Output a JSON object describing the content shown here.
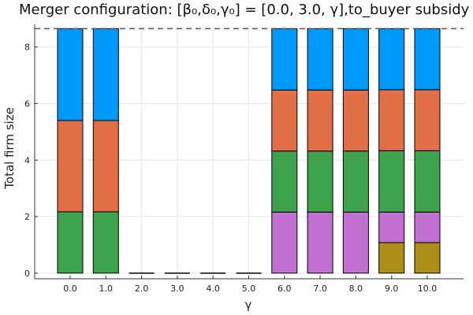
{
  "chart_data": {
    "type": "bar",
    "stacked": true,
    "title": "Merger configuration: [β₀,δ₀,γ₀] = [0.0, 3.0, γ],to_buyer subsidy",
    "xlabel": "γ",
    "ylabel": "Total firm size",
    "categories": [
      "0.0",
      "1.0",
      "2.0",
      "3.0",
      "4.0",
      "5.0",
      "6.0",
      "7.0",
      "8.0",
      "9.0",
      "10.0"
    ],
    "ylim": [
      -0.2,
      8.8
    ],
    "yticks": [
      0,
      2,
      4,
      6,
      8
    ],
    "grid": true,
    "legend": "none",
    "reference_line": {
      "y": 8.65,
      "style": "dashed"
    },
    "series": [
      {
        "color": "#AC8E18",
        "values": [
          0,
          0,
          0,
          0,
          0,
          0,
          0,
          0,
          0,
          1.08,
          1.08
        ]
      },
      {
        "color": "#C271D2",
        "values": [
          0,
          0,
          0,
          0,
          0,
          0,
          2.16,
          2.16,
          2.16,
          1.08,
          1.08
        ]
      },
      {
        "color": "#3DA44D",
        "values": [
          2.17,
          2.17,
          0,
          0,
          0,
          0,
          2.16,
          2.16,
          2.16,
          2.17,
          2.17
        ]
      },
      {
        "color": "#E26F46",
        "values": [
          3.23,
          3.23,
          0,
          0,
          0,
          0,
          2.16,
          2.16,
          2.16,
          2.16,
          2.16
        ]
      },
      {
        "color": "#009AFA",
        "values": [
          3.25,
          3.25,
          0,
          0,
          0,
          0,
          2.17,
          2.17,
          2.17,
          2.16,
          2.16
        ]
      }
    ]
  }
}
